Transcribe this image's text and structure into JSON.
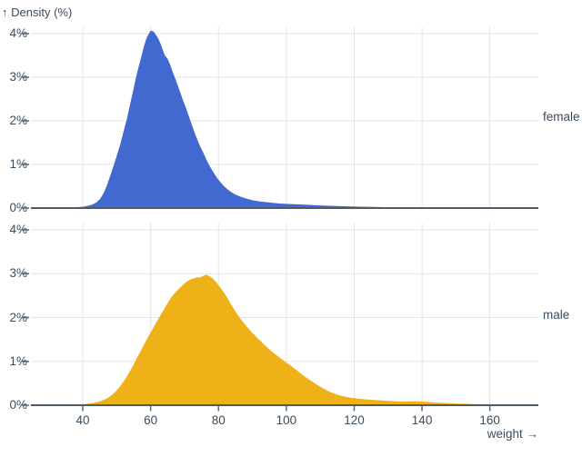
{
  "chart_data": {
    "type": "area",
    "title": "",
    "ylabel": "↑ Density (%)",
    "xlabel": "weight →",
    "x_ticks": [
      40,
      60,
      80,
      100,
      120,
      140,
      160
    ],
    "y_ticks": [
      {
        "value": 0,
        "label": "0%"
      },
      {
        "value": 1,
        "label": "1%"
      },
      {
        "value": 2,
        "label": "2%"
      },
      {
        "value": 3,
        "label": "3%"
      },
      {
        "value": 4,
        "label": "4%"
      }
    ],
    "xlim": [
      24.7,
      174.3
    ],
    "ylim": [
      0,
      4.15
    ],
    "grid": true,
    "legend_position": "right-facet-labels",
    "colors": {
      "female": "#4269d0",
      "male": "#efb118",
      "grid": "#e2e5e8",
      "axis": "#4d5b68",
      "tick": "#5d6b77",
      "text": "#3b4c5c"
    },
    "facets": [
      {
        "name": "female",
        "color": "#4269d0",
        "peak": {
          "weight": 60,
          "density_pct": 4.07
        },
        "points": [
          [
            24.7,
            0
          ],
          [
            36,
            0.01
          ],
          [
            40,
            0.03
          ],
          [
            42,
            0.06
          ],
          [
            43,
            0.09
          ],
          [
            44,
            0.13
          ],
          [
            45,
            0.2
          ],
          [
            46,
            0.32
          ],
          [
            47,
            0.5
          ],
          [
            48,
            0.72
          ],
          [
            49,
            0.95
          ],
          [
            50,
            1.2
          ],
          [
            51,
            1.45
          ],
          [
            52,
            1.75
          ],
          [
            53,
            2.05
          ],
          [
            54,
            2.4
          ],
          [
            55,
            2.75
          ],
          [
            56,
            3.1
          ],
          [
            57,
            3.4
          ],
          [
            58,
            3.7
          ],
          [
            58.7,
            3.88
          ],
          [
            59.3,
            3.98
          ],
          [
            60,
            4.07
          ],
          [
            60.8,
            4.05
          ],
          [
            61.5,
            3.98
          ],
          [
            62.3,
            3.88
          ],
          [
            63,
            3.75
          ],
          [
            63.6,
            3.62
          ],
          [
            64.2,
            3.5
          ],
          [
            65,
            3.42
          ],
          [
            65.7,
            3.3
          ],
          [
            66.5,
            3.12
          ],
          [
            67.5,
            2.92
          ],
          [
            68.5,
            2.7
          ],
          [
            69.5,
            2.48
          ],
          [
            70.5,
            2.28
          ],
          [
            71.5,
            2.05
          ],
          [
            72.5,
            1.83
          ],
          [
            73.5,
            1.62
          ],
          [
            74.5,
            1.43
          ],
          [
            75.5,
            1.27
          ],
          [
            76.5,
            1.1
          ],
          [
            77.5,
            0.95
          ],
          [
            78.5,
            0.82
          ],
          [
            79.5,
            0.7
          ],
          [
            80.5,
            0.6
          ],
          [
            81.5,
            0.51
          ],
          [
            82.5,
            0.44
          ],
          [
            83.5,
            0.38
          ],
          [
            85,
            0.31
          ],
          [
            86.5,
            0.26
          ],
          [
            88,
            0.22
          ],
          [
            90,
            0.18
          ],
          [
            92,
            0.155
          ],
          [
            94,
            0.135
          ],
          [
            96,
            0.12
          ],
          [
            98,
            0.105
          ],
          [
            100,
            0.095
          ],
          [
            103,
            0.085
          ],
          [
            106,
            0.075
          ],
          [
            110,
            0.06
          ],
          [
            114,
            0.05
          ],
          [
            118,
            0.04
          ],
          [
            122,
            0.032
          ],
          [
            126,
            0.025
          ],
          [
            130,
            0.018
          ],
          [
            134,
            0.012
          ],
          [
            138,
            0.007
          ],
          [
            143,
            0.003
          ],
          [
            150,
            0.001
          ],
          [
            174.3,
            0
          ]
        ]
      },
      {
        "name": "male",
        "color": "#efb118",
        "peak": {
          "weight": 76.5,
          "density_pct": 2.98
        },
        "points": [
          [
            24.7,
            0
          ],
          [
            36,
            0.005
          ],
          [
            40,
            0.02
          ],
          [
            43,
            0.05
          ],
          [
            45,
            0.09
          ],
          [
            47,
            0.15
          ],
          [
            48,
            0.2
          ],
          [
            49,
            0.26
          ],
          [
            50,
            0.34
          ],
          [
            51,
            0.43
          ],
          [
            52,
            0.54
          ],
          [
            53,
            0.66
          ],
          [
            54,
            0.79
          ],
          [
            55,
            0.93
          ],
          [
            56,
            1.08
          ],
          [
            57,
            1.23
          ],
          [
            58,
            1.38
          ],
          [
            59,
            1.52
          ],
          [
            60,
            1.66
          ],
          [
            61,
            1.8
          ],
          [
            62,
            1.93
          ],
          [
            63,
            2.07
          ],
          [
            64,
            2.2
          ],
          [
            65,
            2.33
          ],
          [
            66,
            2.45
          ],
          [
            67,
            2.55
          ],
          [
            68,
            2.63
          ],
          [
            69,
            2.71
          ],
          [
            70,
            2.78
          ],
          [
            71,
            2.84
          ],
          [
            72,
            2.88
          ],
          [
            73,
            2.9
          ],
          [
            73.7,
            2.92
          ],
          [
            74.3,
            2.91
          ],
          [
            75,
            2.93
          ],
          [
            75.7,
            2.96
          ],
          [
            76.3,
            2.98
          ],
          [
            77,
            2.96
          ],
          [
            77.8,
            2.92
          ],
          [
            78.6,
            2.87
          ],
          [
            79.5,
            2.79
          ],
          [
            80.5,
            2.69
          ],
          [
            81.5,
            2.58
          ],
          [
            82.5,
            2.46
          ],
          [
            83.5,
            2.33
          ],
          [
            84.5,
            2.2
          ],
          [
            85.5,
            2.08
          ],
          [
            86.5,
            1.97
          ],
          [
            87.5,
            1.87
          ],
          [
            88.5,
            1.78
          ],
          [
            89.5,
            1.69
          ],
          [
            90.5,
            1.61
          ],
          [
            91.5,
            1.53
          ],
          [
            92.5,
            1.46
          ],
          [
            93.5,
            1.38
          ],
          [
            94.5,
            1.31
          ],
          [
            95.5,
            1.24
          ],
          [
            96.5,
            1.18
          ],
          [
            97.5,
            1.12
          ],
          [
            98.5,
            1.06
          ],
          [
            99.5,
            1.0
          ],
          [
            101,
            0.92
          ],
          [
            103,
            0.8
          ],
          [
            105,
            0.68
          ],
          [
            107,
            0.57
          ],
          [
            109,
            0.47
          ],
          [
            111,
            0.38
          ],
          [
            113,
            0.3
          ],
          [
            115,
            0.24
          ],
          [
            117,
            0.2
          ],
          [
            119,
            0.17
          ],
          [
            121,
            0.15
          ],
          [
            123,
            0.135
          ],
          [
            125,
            0.125
          ],
          [
            127,
            0.115
          ],
          [
            129,
            0.105
          ],
          [
            131,
            0.095
          ],
          [
            133,
            0.085
          ],
          [
            135,
            0.085
          ],
          [
            137,
            0.09
          ],
          [
            139,
            0.09
          ],
          [
            141,
            0.08
          ],
          [
            143,
            0.065
          ],
          [
            145,
            0.055
          ],
          [
            148,
            0.045
          ],
          [
            151,
            0.038
          ],
          [
            154,
            0.03
          ],
          [
            157,
            0.022
          ],
          [
            160,
            0.016
          ],
          [
            163,
            0.01
          ],
          [
            167,
            0.006
          ],
          [
            171,
            0.003
          ],
          [
            174.3,
            0.001
          ]
        ]
      }
    ]
  }
}
